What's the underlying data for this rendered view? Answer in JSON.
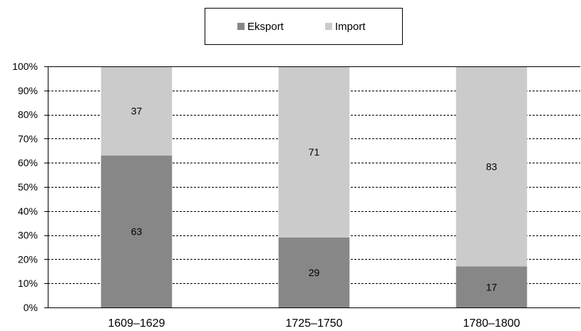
{
  "chart_data": {
    "type": "bar",
    "stacked": true,
    "categories": [
      "1609–1629",
      "1725–1750",
      "1780–1800"
    ],
    "series": [
      {
        "name": "Eksport",
        "values": [
          63,
          29,
          17
        ],
        "color": "#878787"
      },
      {
        "name": "Import",
        "values": [
          37,
          71,
          83
        ],
        "color": "#cbcbcb"
      }
    ],
    "ylim": [
      0,
      100
    ],
    "yticks": [
      0,
      10,
      20,
      30,
      40,
      50,
      60,
      70,
      80,
      90,
      100
    ],
    "ytick_labels": [
      "0%",
      "10%",
      "20%",
      "30%",
      "40%",
      "50%",
      "60%",
      "70%",
      "80%",
      "90%",
      "100%"
    ],
    "grid": true,
    "legend": "top-center",
    "data_labels": true
  }
}
